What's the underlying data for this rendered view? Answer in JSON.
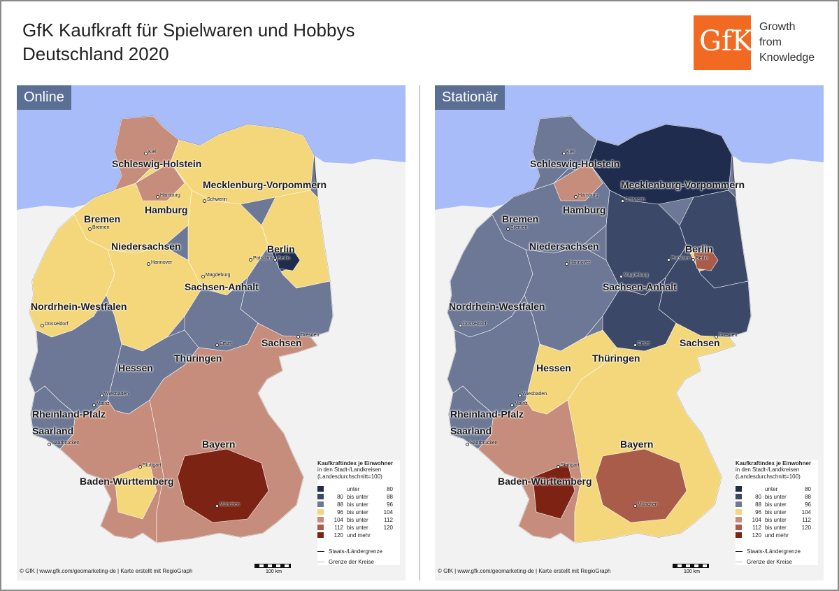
{
  "title": {
    "line1": "GfK Kaufkraft für Spielwaren und Hobbys",
    "line2": "Deutschland 2020"
  },
  "logo": {
    "text": "GfK",
    "tagline1": "Growth",
    "tagline2": "from",
    "tagline3": "Knowledge",
    "color": "#f26a21"
  },
  "colors": {
    "sea": "#a7bcf9",
    "land_outside": "#f2f2f2",
    "label_box": "#5b6f95",
    "classes": [
      "#1f2c4d",
      "#3c4868",
      "#6d7896",
      "#f3d77a",
      "#c68d7c",
      "#a95c4a",
      "#7c2314"
    ]
  },
  "panels": [
    {
      "label": "Online",
      "state_labels": [
        "Schleswig-Holstein",
        "Mecklenburg-Vorpommern",
        "Hamburg",
        "Bremen",
        "Niedersachsen",
        "Berlin",
        "Sachsen-Anhalt",
        "Nordrhein-Westfalen",
        "Sachsen",
        "Hessen",
        "Thüringen",
        "Rheinland-Pfalz",
        "Saarland",
        "Bayern",
        "Baden-Württemberg"
      ],
      "city_labels": [
        "Kiel",
        "Hamburg",
        "Schwerin",
        "Bremen",
        "Hannover",
        "Potsdam",
        "Berlin",
        "Magdeburg",
        "Düsseldorf",
        "Dresden",
        "Erfurt",
        "Wiesbaden",
        "Mainz",
        "Saarbrücken",
        "Stuttgart",
        "München"
      ]
    },
    {
      "label": "Stationär",
      "state_labels": [
        "Schleswig-Holstein",
        "Mecklenburg-Vorpommern",
        "Hamburg",
        "Bremen",
        "Niedersachsen",
        "Berlin",
        "Sachsen-Anhalt",
        "Nordrhein-Westfalen",
        "Sachsen",
        "Hessen",
        "Thüringen",
        "Rheinland-Pfalz",
        "Saarland",
        "Bayern",
        "Baden-Württemberg"
      ],
      "city_labels": [
        "Kiel",
        "Hamburg",
        "Schwerin",
        "Bremen",
        "Hannover",
        "Potsdam",
        "Berlin",
        "Magdeburg",
        "Düsseldorf",
        "Dresden",
        "Erfurt",
        "Wiesbaden",
        "Mainz",
        "Saarbrücken",
        "Stuttgart",
        "München"
      ]
    }
  ],
  "legend": {
    "title": "Kaufkraftindex je Einwohner",
    "subtitle1": "in den Stadt-/Landkreisen",
    "subtitle2": "(Landesdurchschnitt=100)",
    "rows": [
      {
        "lo": "",
        "mid": "unter",
        "hi": "80"
      },
      {
        "lo": "80",
        "mid": "bis unter",
        "hi": "88"
      },
      {
        "lo": "88",
        "mid": "bis unter",
        "hi": "96"
      },
      {
        "lo": "96",
        "mid": "bis unter",
        "hi": "104"
      },
      {
        "lo": "104",
        "mid": "bis unter",
        "hi": "112"
      },
      {
        "lo": "112",
        "mid": "bis unter",
        "hi": "120"
      },
      {
        "lo": "120",
        "mid": "und mehr",
        "hi": ""
      }
    ],
    "line1": "Staats-/Ländergrenze",
    "line2": "Grenze der Kreise"
  },
  "footer": {
    "copyright": "© GfK | www.gfk.com/geomarketing-de | Karte erstellt mit RegioGraph",
    "scale": "100 km"
  }
}
